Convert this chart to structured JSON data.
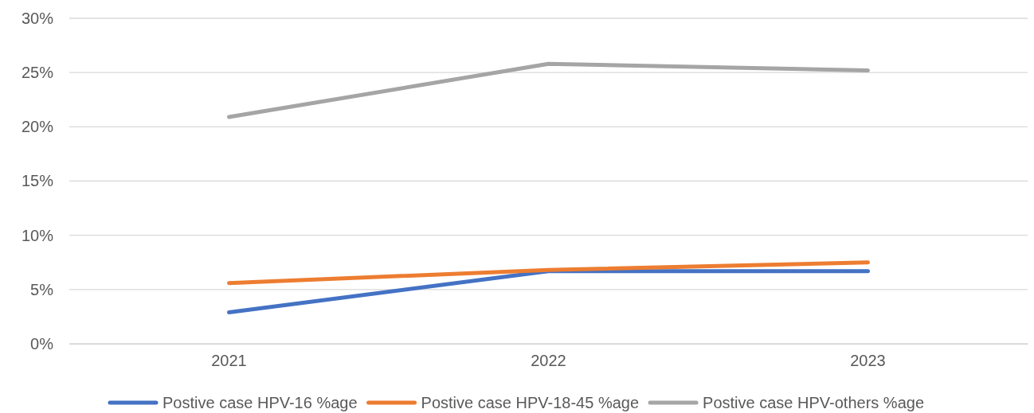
{
  "chart_data": {
    "type": "line",
    "categories": [
      "2021",
      "2022",
      "2023"
    ],
    "series": [
      {
        "name": "Postive case HPV-16 %age",
        "color": "#4472c4",
        "values": [
          2.9,
          6.7,
          6.7
        ]
      },
      {
        "name": "Postive case HPV-18-45 %age",
        "color": "#ed7d31",
        "values": [
          5.6,
          6.8,
          7.5
        ]
      },
      {
        "name": "Postive case HPV-others %age",
        "color": "#a5a5a5",
        "values": [
          20.9,
          25.8,
          25.2
        ]
      }
    ],
    "ylim": [
      0,
      30
    ],
    "yticks": [
      {
        "value": 0,
        "label": "0%"
      },
      {
        "value": 5,
        "label": "5%"
      },
      {
        "value": 10,
        "label": "10%"
      },
      {
        "value": 15,
        "label": "15%"
      },
      {
        "value": 20,
        "label": "20%"
      },
      {
        "value": 25,
        "label": "25%"
      },
      {
        "value": 30,
        "label": "30%"
      }
    ],
    "grid": "y",
    "legend": "bottom",
    "marker": "none",
    "line_style": "solid"
  }
}
